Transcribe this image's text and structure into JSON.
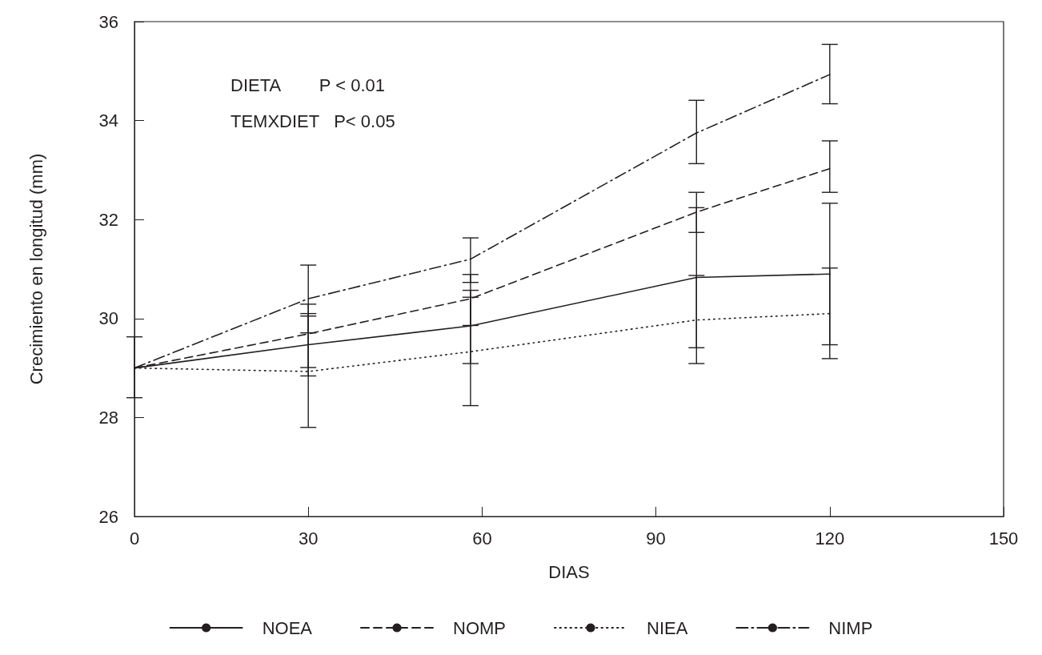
{
  "chart_data": {
    "type": "line",
    "xlabel": "DIAS",
    "ylabel": "Crecimiento en longitud (mm)",
    "x": [
      0,
      30,
      58,
      97,
      120
    ],
    "xlim": [
      0,
      150
    ],
    "xticks": [
      0,
      30,
      60,
      90,
      120,
      150
    ],
    "ylim": [
      26,
      36
    ],
    "yticks": [
      26,
      28,
      30,
      32,
      34,
      36
    ],
    "grid": false,
    "legend": "bottom",
    "marker": "none",
    "annotations": [
      "DIETA        P < 0.01",
      "TEMXDIET   P< 0.05"
    ],
    "series": [
      {
        "name": "NOEA",
        "color": "#231f20",
        "line_style": "solid",
        "values": [
          29.0,
          29.47,
          29.85,
          30.83,
          30.9
        ],
        "errors": [
          [
            28.4,
            29.63
          ],
          [
            28.84,
            30.1
          ],
          [
            29.09,
            30.43
          ],
          [
            29.41,
            32.24
          ],
          [
            29.47,
            32.33
          ]
        ]
      },
      {
        "name": "NOMP",
        "color": "#231f20",
        "line_style": "dashed",
        "values": [
          29.0,
          29.69,
          30.4,
          32.15,
          33.03
        ],
        "errors": [
          null,
          [
            29.01,
            30.29
          ],
          [
            29.86,
            30.89
          ],
          [
            31.74,
            32.55
          ],
          [
            32.55,
            33.59
          ]
        ]
      },
      {
        "name": "NIEA",
        "color": "#231f20",
        "line_style": "dotted",
        "values": [
          29.0,
          28.93,
          29.33,
          29.97,
          30.1
        ],
        "errors": [
          null,
          [
            27.8,
            30.05
          ],
          [
            28.24,
            30.57
          ],
          [
            29.09,
            30.87
          ],
          [
            29.19,
            31.02
          ]
        ]
      },
      {
        "name": "NIMP",
        "color": "#231f20",
        "line_style": "dashdot",
        "values": [
          29.0,
          30.4,
          31.2,
          33.75,
          34.93
        ],
        "errors": [
          null,
          [
            29.71,
            31.08
          ],
          [
            30.73,
            31.63
          ],
          [
            33.13,
            34.41
          ],
          [
            34.34,
            35.54
          ]
        ]
      }
    ]
  }
}
